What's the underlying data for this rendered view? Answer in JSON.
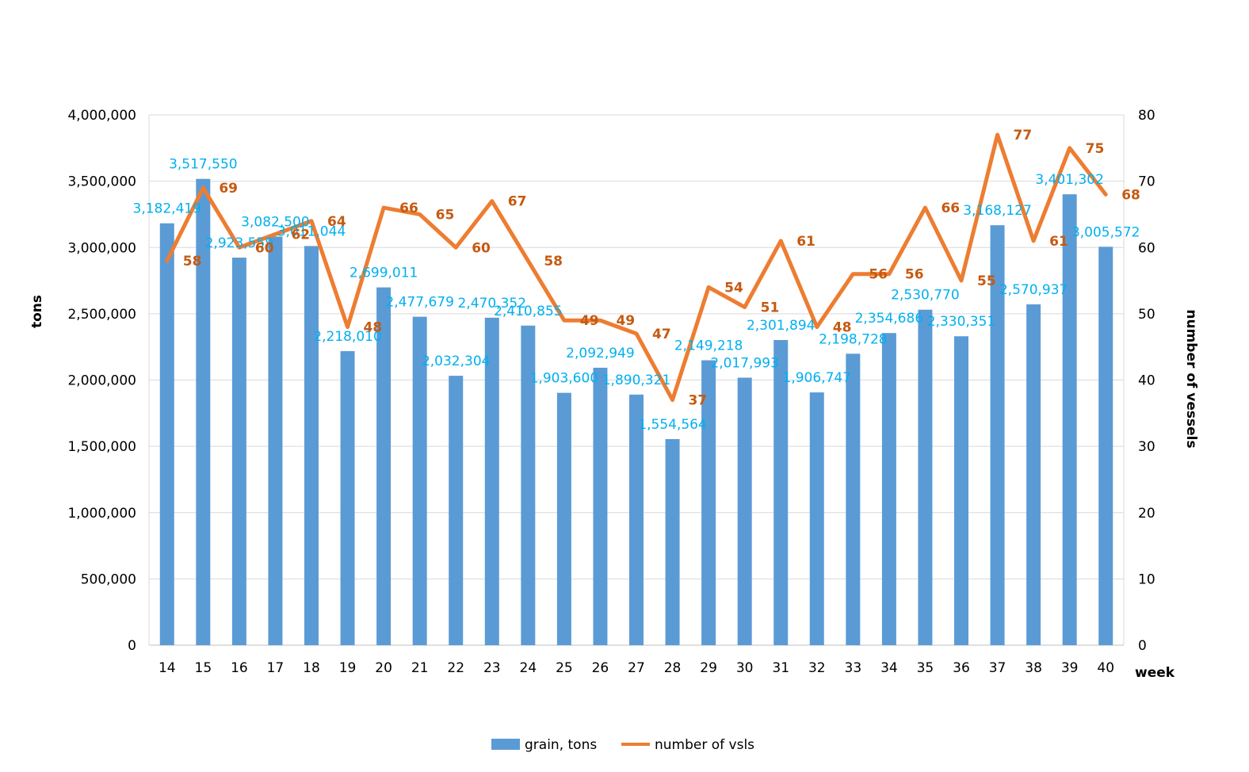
{
  "chart_data": {
    "type": "bar+line",
    "xlabel": "week",
    "y_left_label": "tons",
    "y_right_label": "number of vessels",
    "y_left_lim": [
      0,
      4000000
    ],
    "y_left_ticks": [
      "0",
      "500,000",
      "1,000,000",
      "1,500,000",
      "2,000,000",
      "2,500,000",
      "3,000,000",
      "3,500,000",
      "4,000,000"
    ],
    "y_right_lim": [
      0,
      80
    ],
    "y_right_ticks": [
      "0",
      "10",
      "20",
      "30",
      "40",
      "50",
      "60",
      "70",
      "80"
    ],
    "gridlines": true,
    "legend_position": "bottom",
    "categories": [
      "14",
      "15",
      "16",
      "17",
      "18",
      "19",
      "20",
      "21",
      "22",
      "23",
      "24",
      "25",
      "26",
      "27",
      "28",
      "29",
      "30",
      "31",
      "32",
      "33",
      "34",
      "35",
      "36",
      "37",
      "38",
      "39",
      "40"
    ],
    "series": [
      {
        "name": "grain, tons",
        "type": "bar",
        "axis": "left",
        "color": "#5b9bd5",
        "label_color": "#00b0f0",
        "values": [
          3182419,
          3517550,
          2923559,
          3082500,
          3011044,
          2218010,
          2699011,
          2477679,
          2032304,
          2470352,
          2410855,
          1903600,
          2092949,
          1890321,
          1554564,
          2149218,
          2017993,
          2301894,
          1906747,
          2198728,
          2354686,
          2530770,
          2330351,
          3168127,
          2570937,
          3401302,
          3005572
        ],
        "labels": [
          "3,182,419",
          "3,517,550",
          "2,923,559",
          "3,082,500",
          "3,011,044",
          "2,218,010",
          "2,699,011",
          "2,477,679",
          "2,032,304",
          "2,470,352",
          "2,410,855",
          "1,903,600",
          "2,092,949",
          "1,890,321",
          "1,554,564",
          "2,149,218",
          "2,017,993",
          "2,301,894",
          "1,906,747",
          "2,198,728",
          "2,354,686",
          "2,530,770",
          "2,330,351",
          "3,168,127",
          "2,570,937",
          "3,401,302",
          "3,005,572"
        ]
      },
      {
        "name": "number of vsls",
        "type": "line",
        "axis": "right",
        "color": "#ed7d31",
        "label_color": "#c55a11",
        "values": [
          58,
          69,
          60,
          62,
          64,
          48,
          66,
          65,
          60,
          67,
          58,
          49,
          49,
          47,
          37,
          54,
          51,
          61,
          48,
          56,
          56,
          66,
          55,
          77,
          61,
          75,
          68
        ],
        "labels": [
          "58",
          "69",
          "60",
          "62",
          "64",
          "48",
          "66",
          "65",
          "60",
          "67",
          "58",
          "49",
          "49",
          "47",
          "37",
          "54",
          "51",
          "61",
          "48",
          "56",
          "56",
          "66",
          "55",
          "77",
          "61",
          "75",
          "68"
        ]
      }
    ]
  }
}
